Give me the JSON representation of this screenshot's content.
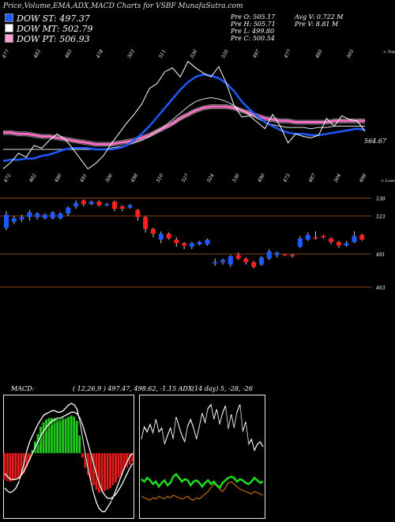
{
  "title": "Price,Volume,EMA,ADX,MACD Charts for VSBF MunafaSutra.com",
  "legend": [
    {
      "label": "DOW ST: 497.37",
      "color": "#1e5aff"
    },
    {
      "label": "DOW MT: 502.79",
      "color": "#ffffff"
    },
    {
      "label": "DOW PT: 506.93",
      "color": "#ff9fd6"
    }
  ],
  "stats": {
    "o": "Pre   O: 505.17",
    "h": "Pre   H: 505.71",
    "l": "Pre   L: 499.80",
    "c": "Pre   C: 500.54",
    "avgv": "Avg V: 0.722  M",
    "prev": "Pre   V: 8.81 M"
  },
  "macd_header": {
    "label": "MACD:",
    "values": "( 12,26,9 ) 497.47,  498.62,  -1.15 ADX",
    "adx": "(14  day) 5,  -28,  -26"
  },
  "chart_data": [
    {
      "type": "line",
      "name": "price-ema",
      "tops_label": "< Tops",
      "lows_label": "< Lows",
      "last_price_label": "564.67",
      "top_labels": [
        "477",
        "483",
        "483",
        "478",
        "503",
        "511",
        "536",
        "535",
        "497",
        "477",
        "485",
        "505"
      ],
      "low_labels": [
        "472",
        "482",
        "480",
        "491",
        "506",
        "498",
        "510",
        "527",
        "524",
        "530",
        "490",
        "473",
        "487",
        "504",
        "498"
      ],
      "price": [
        470,
        475,
        482,
        479,
        488,
        486,
        492,
        497,
        493,
        486,
        478,
        470,
        474,
        480,
        489,
        497,
        505,
        512,
        520,
        532,
        536,
        545,
        548,
        541,
        553,
        548,
        544,
        541,
        549,
        536,
        519,
        510,
        511,
        506,
        501,
        512,
        503,
        490,
        497,
        495,
        494,
        496,
        509,
        503,
        511,
        508,
        507,
        499
      ],
      "ema_st": [
        476,
        477,
        477,
        478,
        478,
        480,
        481,
        483,
        485,
        486,
        486,
        486,
        485,
        485,
        485,
        486,
        488,
        492,
        497,
        503,
        510,
        517,
        524,
        531,
        537,
        541,
        543,
        542,
        540,
        536,
        530,
        522,
        516,
        511,
        506,
        503,
        500,
        498,
        497,
        497,
        496,
        496,
        497,
        498,
        499,
        500,
        501,
        500
      ],
      "ema_mt": [
        485,
        485,
        485,
        485,
        485,
        485,
        485,
        485,
        485,
        485,
        485,
        485,
        485,
        485,
        486,
        487,
        488,
        490,
        492,
        495,
        499,
        503,
        508,
        513,
        518,
        522,
        524,
        525,
        524,
        522,
        519,
        515,
        512,
        509,
        506,
        504,
        503,
        502,
        502,
        502,
        501,
        502,
        502,
        503,
        503,
        503,
        503,
        503
      ],
      "ema_pt": [
        498,
        498,
        497,
        497,
        496,
        495,
        495,
        494,
        493,
        492,
        491,
        490,
        489,
        489,
        489,
        490,
        491,
        492,
        494,
        496,
        499,
        502,
        505,
        509,
        512,
        515,
        517,
        518,
        518,
        518,
        517,
        515,
        513,
        511,
        509,
        508,
        507,
        507,
        506,
        506,
        506,
        506,
        506,
        507,
        507,
        507,
        507,
        507
      ],
      "ylim": [
        455,
        565
      ]
    },
    {
      "type": "candlestick",
      "name": "price-candles",
      "ylevels": [
        "538",
        "523",
        "491",
        "463"
      ],
      "candles": [
        {
          "o": 513,
          "c": 524,
          "h": 527,
          "l": 511
        },
        {
          "o": 518,
          "c": 521,
          "h": 523,
          "l": 516
        },
        {
          "o": 520,
          "c": 522,
          "h": 524,
          "l": 518
        },
        {
          "o": 522,
          "c": 526,
          "h": 528,
          "l": 519
        },
        {
          "o": 522,
          "c": 525,
          "h": 526,
          "l": 520
        },
        {
          "o": 521,
          "c": 524,
          "h": 525,
          "l": 520
        },
        {
          "o": 521,
          "c": 526,
          "h": 527,
          "l": 520
        },
        {
          "o": 521,
          "c": 525,
          "h": 526,
          "l": 520
        },
        {
          "o": 525,
          "c": 530,
          "h": 531,
          "l": 523
        },
        {
          "o": 531,
          "c": 534,
          "h": 536,
          "l": 529
        },
        {
          "o": 536,
          "c": 533,
          "h": 537,
          "l": 531
        },
        {
          "o": 533,
          "c": 535,
          "h": 536,
          "l": 532
        },
        {
          "o": 535,
          "c": 532,
          "h": 536,
          "l": 531
        },
        {
          "o": 532,
          "c": 533,
          "h": 534,
          "l": 531
        },
        {
          "o": 535,
          "c": 529,
          "h": 536,
          "l": 527
        },
        {
          "o": 531,
          "c": 529,
          "h": 532,
          "l": 527
        },
        {
          "o": 530,
          "c": 532,
          "h": 533,
          "l": 529
        },
        {
          "o": 528,
          "c": 522,
          "h": 529,
          "l": 519
        },
        {
          "o": 522,
          "c": 512,
          "h": 523,
          "l": 509
        },
        {
          "o": 512,
          "c": 508,
          "h": 513,
          "l": 505
        },
        {
          "o": 503,
          "c": 508,
          "h": 510,
          "l": 500
        },
        {
          "o": 508,
          "c": 504,
          "h": 509,
          "l": 503
        },
        {
          "o": 503,
          "c": 500,
          "h": 505,
          "l": 497
        },
        {
          "o": 500,
          "c": 498,
          "h": 501,
          "l": 495
        },
        {
          "o": 497,
          "c": 500,
          "h": 501,
          "l": 495
        },
        {
          "o": 499,
          "c": 501,
          "h": 502,
          "l": 498
        },
        {
          "o": 499,
          "c": 503,
          "h": 504,
          "l": 498
        },
        {
          "o": 483,
          "c": 484,
          "h": 487,
          "l": 481
        },
        {
          "o": 484,
          "c": 486,
          "h": 487,
          "l": 482
        },
        {
          "o": 482,
          "c": 489,
          "h": 490,
          "l": 480
        },
        {
          "o": 490,
          "c": 487,
          "h": 492,
          "l": 486
        },
        {
          "o": 487,
          "c": 484,
          "h": 488,
          "l": 482
        },
        {
          "o": 484,
          "c": 480,
          "h": 485,
          "l": 479
        },
        {
          "o": 482,
          "c": 488,
          "h": 489,
          "l": 481
        },
        {
          "o": 487,
          "c": 493,
          "h": 495,
          "l": 486
        },
        {
          "o": 490,
          "c": 492,
          "h": 493,
          "l": 488
        },
        {
          "o": 491,
          "c": 490,
          "h": 491,
          "l": 489
        },
        {
          "o": 490,
          "c": 489,
          "h": 491,
          "l": 488
        },
        {
          "o": 497,
          "c": 504,
          "h": 506,
          "l": 496
        },
        {
          "o": 503,
          "c": 507,
          "h": 509,
          "l": 502
        },
        {
          "o": 505,
          "c": 504,
          "h": 510,
          "l": 503
        },
        {
          "o": 506,
          "c": 505,
          "h": 507,
          "l": 504
        },
        {
          "o": 504,
          "c": 501,
          "h": 505,
          "l": 499
        },
        {
          "o": 501,
          "c": 498,
          "h": 502,
          "l": 496
        },
        {
          "o": 498,
          "c": 500,
          "h": 502,
          "l": 497
        },
        {
          "o": 501,
          "c": 506,
          "h": 510,
          "l": 500
        },
        {
          "o": 507,
          "c": 503,
          "h": 508,
          "l": 502
        }
      ],
      "ylim": [
        455,
        545
      ]
    },
    {
      "type": "bar",
      "name": "macd",
      "hist": [
        -18,
        -19,
        -20,
        -19,
        -18,
        -17,
        -16,
        -14,
        -10,
        -5,
        2,
        8,
        13,
        18,
        21,
        23,
        24,
        24,
        24,
        23,
        23,
        24,
        24,
        25,
        26,
        25,
        22,
        12,
        -3,
        -10,
        -15,
        -19,
        -22,
        -25,
        -27,
        -27,
        -26,
        -25,
        -24,
        -22,
        -20,
        -17,
        -15,
        -12,
        -10,
        -8,
        -6
      ],
      "line1": [
        -24,
        -26,
        -27,
        -26,
        -24,
        -20,
        -14,
        -7,
        2,
        8,
        12,
        16,
        20,
        23,
        26,
        27,
        28,
        29,
        29,
        28,
        28,
        29,
        31,
        33,
        34,
        33,
        30,
        21,
        10,
        -2,
        -12,
        -20,
        -28,
        -34,
        -38,
        -40,
        -40,
        -37,
        -34,
        -30,
        -25,
        -20,
        -15,
        -10,
        -6,
        -2,
        0
      ],
      "line2": [
        -14,
        -16,
        -18,
        -18,
        -18,
        -17,
        -15,
        -12,
        -8,
        -4,
        0,
        4,
        8,
        12,
        15,
        18,
        20,
        22,
        23,
        24,
        24,
        25,
        26,
        27,
        28,
        28,
        27,
        24,
        19,
        13,
        6,
        -1,
        -8,
        -15,
        -21,
        -26,
        -29,
        -31,
        -31,
        -30,
        -28,
        -25,
        -22,
        -18,
        -14,
        -10,
        -7
      ],
      "ylim": [
        -45,
        40
      ]
    },
    {
      "type": "line",
      "name": "adx",
      "diplus": [
        32,
        30,
        33,
        31,
        28,
        30,
        26,
        29,
        31,
        27,
        29,
        34,
        36,
        33,
        30,
        32,
        31,
        27,
        30,
        31,
        29,
        26,
        29,
        31,
        28,
        30,
        27,
        25,
        29,
        31,
        33,
        34,
        33,
        30,
        32,
        31,
        29,
        28,
        30,
        33,
        31,
        29,
        30
      ],
      "diminus": [
        18,
        17,
        16,
        15,
        17,
        16,
        18,
        17,
        16,
        18,
        17,
        19,
        18,
        17,
        16,
        17,
        18,
        16,
        15,
        17,
        16,
        18,
        20,
        22,
        25,
        28,
        27,
        24,
        22,
        25,
        29,
        30,
        28,
        26,
        24,
        23,
        22,
        21,
        20,
        22,
        21,
        20,
        19
      ],
      "adx": [
        64,
        74,
        70,
        76,
        69,
        80,
        70,
        73,
        60,
        67,
        73,
        64,
        82,
        74,
        67,
        62,
        75,
        80,
        73,
        64,
        74,
        85,
        77,
        89,
        92,
        80,
        88,
        76,
        85,
        91,
        72,
        84,
        73,
        86,
        92,
        70,
        78,
        60,
        64,
        55,
        60,
        62,
        58
      ],
      "ylim": [
        0,
        100
      ]
    }
  ]
}
